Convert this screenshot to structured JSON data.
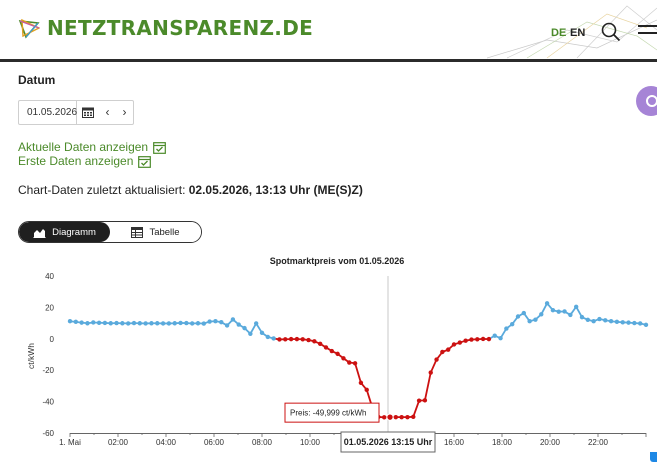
{
  "header": {
    "logo_text": "NETZTRANSPARENZ.DE",
    "lang_de": "DE",
    "lang_en": "EN",
    "search_icon": "search-icon",
    "menu_icon": "hamburger-menu-icon",
    "brand_color": "#4b8a2a"
  },
  "date_section": {
    "label": "Datum",
    "value": "01.05.2026",
    "calendar_icon": "calendar-icon",
    "prev": "‹",
    "next": "›"
  },
  "links": {
    "current": "Aktuelle Daten anzeigen",
    "first": "Erste Daten anzeigen"
  },
  "updated": {
    "prefix": "Chart-Daten zuletzt aktualisiert:",
    "value": "02.05.2026, 13:13 Uhr (ME(S)Z)"
  },
  "view_toggle": {
    "chart_label": "Diagramm",
    "table_label": "Tabelle",
    "active": "Diagramm"
  },
  "chart_data": {
    "type": "line",
    "title": "Spotmarktpreis vom 01.05.2026",
    "ylabel": "ct/kWh",
    "ylim": [
      -60,
      40
    ],
    "y_ticks": [
      "40",
      "20",
      "0",
      "-20",
      "-40",
      "-60"
    ],
    "x_tick_labels": [
      "1. Mai",
      "02:00",
      "04:00",
      "06:00",
      "08:00",
      "10:00",
      "12:00",
      "14:00",
      "16:00",
      "18:00",
      "20:00",
      "22:00"
    ],
    "x_range_hours": [
      0,
      24
    ],
    "positive_color": "#5aaadc",
    "negative_color": "#cc1111",
    "series": [
      {
        "values": [
          11.2,
          10.8,
          10.3,
          9.9,
          10.4,
          10.2,
          10.1,
          9.9,
          10.0,
          9.9,
          9.8,
          10.0,
          9.9,
          9.8,
          9.9,
          9.9,
          9.8,
          9.8,
          9.9,
          10.1,
          10.0,
          9.8,
          9.9,
          9.7,
          11.0,
          11.2,
          10.6,
          8.5,
          12.3,
          9.1,
          6.8,
          3.2,
          9.8,
          3.8,
          1.2,
          0.2,
          -0.4,
          -0.3,
          -0.2,
          -0.2,
          -0.3,
          -0.8,
          -1.6,
          -3.2,
          -5.5,
          -7.8,
          -9.6,
          -12.4,
          -15.1,
          -15.6,
          -28.0,
          -32.5,
          -44.2,
          -49.8,
          -50.0,
          -49.9,
          -49.9,
          -49.9,
          -49.9,
          -49.7,
          -39.4,
          -39.2,
          -21.5,
          -13.2,
          -8.4,
          -6.9,
          -3.6,
          -2.4,
          -1.2,
          -0.5,
          -0.3,
          -0.1,
          -0.2,
          2.0,
          0.4,
          6.5,
          9.3,
          14.2,
          16.4,
          11.2,
          12.2,
          15.6,
          22.6,
          18.2,
          17.3,
          17.4,
          15.2,
          20.4,
          13.8,
          12.1,
          11.2,
          12.6,
          11.8,
          11.2,
          10.8,
          10.5,
          10.3,
          10.0,
          9.8,
          8.9
        ]
      }
    ],
    "tooltip_value": "Preis: -49,999 ct/kWh",
    "tooltip_time": "01.05.2026 13:15 Uhr",
    "crosshair_hour": 13.25
  }
}
